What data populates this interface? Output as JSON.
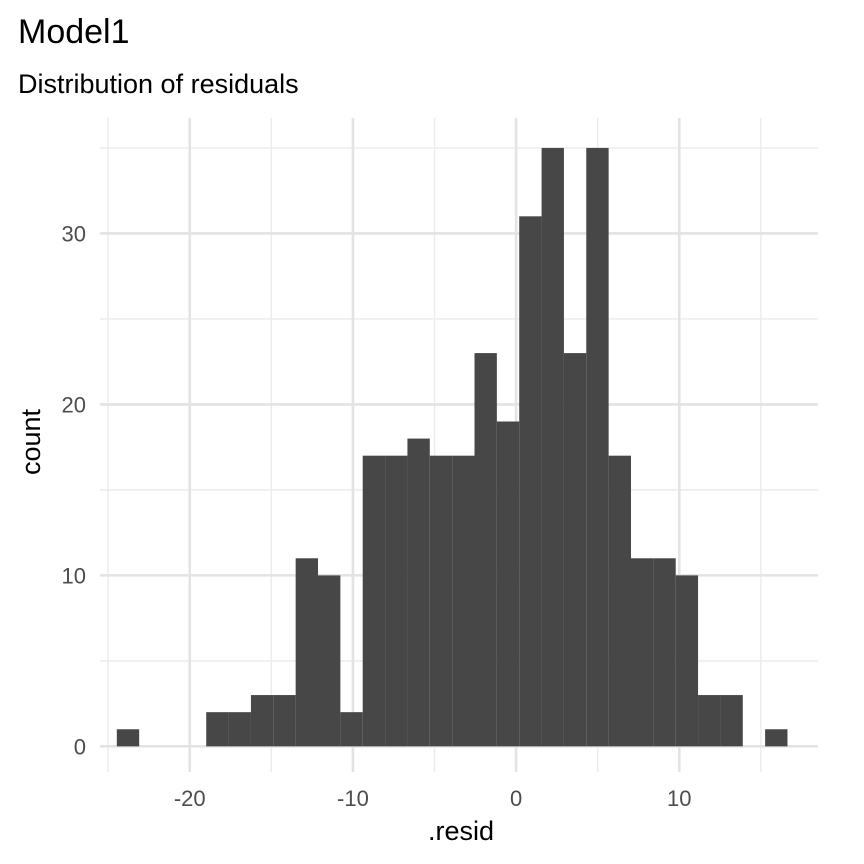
{
  "title": "Model1",
  "subtitle": "Distribution of residuals",
  "chart_data": {
    "type": "bar",
    "subtype": "histogram",
    "title": "Model1",
    "subtitle": "Distribution of residuals",
    "xlabel": ".resid",
    "ylabel": "count",
    "xlim": [
      -25.5,
      18.5
    ],
    "ylim": [
      -1.5,
      36.75
    ],
    "x_ticks": [
      -20,
      -10,
      0,
      10
    ],
    "x_tick_labels": [
      "-20",
      "-10",
      "0",
      "10"
    ],
    "y_ticks": [
      0,
      10,
      20,
      30
    ],
    "y_tick_labels": [
      "0",
      "10",
      "20",
      "30"
    ],
    "x_minor_ticks": [
      -25,
      -15,
      -5,
      5,
      15
    ],
    "y_minor_ticks": [
      5,
      15,
      25,
      35
    ],
    "grid": true,
    "bar_color": "#474747",
    "bins": [
      {
        "x0": -24.47,
        "x1": -23.1,
        "count": 1
      },
      {
        "x0": -23.1,
        "x1": -21.73,
        "count": 0
      },
      {
        "x0": -21.73,
        "x1": -20.36,
        "count": 0
      },
      {
        "x0": -20.36,
        "x1": -18.99,
        "count": 0
      },
      {
        "x0": -18.99,
        "x1": -17.62,
        "count": 2
      },
      {
        "x0": -17.62,
        "x1": -16.25,
        "count": 2
      },
      {
        "x0": -16.25,
        "x1": -14.88,
        "count": 3
      },
      {
        "x0": -14.88,
        "x1": -13.51,
        "count": 3
      },
      {
        "x0": -13.51,
        "x1": -12.14,
        "count": 11
      },
      {
        "x0": -12.14,
        "x1": -10.77,
        "count": 10
      },
      {
        "x0": -10.77,
        "x1": -9.4,
        "count": 2
      },
      {
        "x0": -9.4,
        "x1": -8.03,
        "count": 17
      },
      {
        "x0": -8.03,
        "x1": -6.66,
        "count": 17
      },
      {
        "x0": -6.66,
        "x1": -5.29,
        "count": 18
      },
      {
        "x0": -5.29,
        "x1": -3.92,
        "count": 17
      },
      {
        "x0": -3.92,
        "x1": -2.55,
        "count": 17
      },
      {
        "x0": -2.55,
        "x1": -1.18,
        "count": 23
      },
      {
        "x0": -1.18,
        "x1": 0.19,
        "count": 19
      },
      {
        "x0": 0.19,
        "x1": 1.56,
        "count": 31
      },
      {
        "x0": 1.56,
        "x1": 2.93,
        "count": 35
      },
      {
        "x0": 2.93,
        "x1": 4.3,
        "count": 23
      },
      {
        "x0": 4.3,
        "x1": 5.67,
        "count": 35
      },
      {
        "x0": 5.67,
        "x1": 7.04,
        "count": 17
      },
      {
        "x0": 7.04,
        "x1": 8.41,
        "count": 11
      },
      {
        "x0": 8.41,
        "x1": 9.78,
        "count": 11
      },
      {
        "x0": 9.78,
        "x1": 11.15,
        "count": 10
      },
      {
        "x0": 11.15,
        "x1": 12.52,
        "count": 3
      },
      {
        "x0": 12.52,
        "x1": 13.89,
        "count": 3
      },
      {
        "x0": 13.89,
        "x1": 15.26,
        "count": 0
      },
      {
        "x0": 15.26,
        "x1": 16.63,
        "count": 1
      }
    ]
  }
}
